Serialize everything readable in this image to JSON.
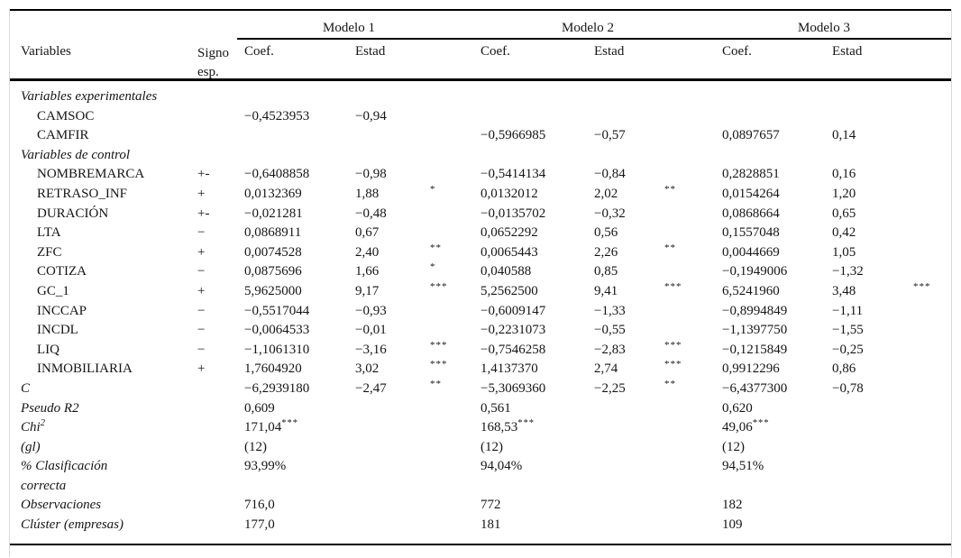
{
  "table": {
    "header": {
      "variables": "Variables",
      "signo_line1": "Signo",
      "signo_line2": "esp.",
      "models": [
        "Modelo 1",
        "Modelo 2",
        "Modelo 3"
      ],
      "coef": "Coef.",
      "estad": "Estad"
    },
    "rows": [
      {
        "type": "section",
        "label": "Variables experimentales"
      },
      {
        "type": "var",
        "label": "CAMSOC",
        "signo": "",
        "m": [
          [
            "−0,4523953",
            "−0,94",
            ""
          ],
          [
            "",
            "",
            ""
          ],
          [
            "",
            "",
            ""
          ]
        ]
      },
      {
        "type": "var",
        "label": "CAMFIR",
        "signo": "",
        "m": [
          [
            "",
            "",
            ""
          ],
          [
            "−0,5966985",
            "−0,57",
            ""
          ],
          [
            "0,0897657",
            "0,14",
            ""
          ]
        ]
      },
      {
        "type": "section",
        "label": "Variables de control"
      },
      {
        "type": "var",
        "label": "NOMBREMARCA",
        "signo": "+-",
        "m": [
          [
            "−0,6408858",
            "−0,98",
            ""
          ],
          [
            "−0,5414134",
            "−0,84",
            ""
          ],
          [
            "0,2828851",
            "0,16",
            ""
          ]
        ]
      },
      {
        "type": "var",
        "label": "RETRASO_INF",
        "signo": "+",
        "m": [
          [
            "0,0132369",
            "1,88",
            "*"
          ],
          [
            "0,0132012",
            "2,02",
            "**"
          ],
          [
            "0,0154264",
            "1,20",
            ""
          ]
        ]
      },
      {
        "type": "var",
        "label": "DURACIÓN",
        "signo": "+-",
        "m": [
          [
            "−0,021281",
            "−0,48",
            ""
          ],
          [
            "−0,0135702",
            "−0,32",
            ""
          ],
          [
            "0,0868664",
            "0,65",
            ""
          ]
        ]
      },
      {
        "type": "var",
        "label": "LTA",
        "signo": "−",
        "m": [
          [
            "0,0868911",
            "0,67",
            ""
          ],
          [
            "0,0652292",
            "0,56",
            ""
          ],
          [
            "0,1557048",
            "0,42",
            ""
          ]
        ]
      },
      {
        "type": "var",
        "label": "ZFC",
        "signo": "+",
        "m": [
          [
            "0,0074528",
            "2,40",
            "**"
          ],
          [
            "0,0065443",
            "2,26",
            "**"
          ],
          [
            "0,0044669",
            "1,05",
            ""
          ]
        ]
      },
      {
        "type": "var",
        "label": "COTIZA",
        "signo": "−",
        "m": [
          [
            "0,0875696",
            "1,66",
            "*"
          ],
          [
            "0,040588",
            "0,85",
            ""
          ],
          [
            "−0,1949006",
            "−1,32",
            ""
          ]
        ]
      },
      {
        "type": "var",
        "label": "GC_1",
        "signo": "+",
        "m": [
          [
            "5,9625000",
            "9,17",
            "***"
          ],
          [
            "5,2562500",
            "9,41",
            "***"
          ],
          [
            "6,5241960",
            "3,48",
            "***"
          ]
        ]
      },
      {
        "type": "var",
        "label": "INCCAP",
        "signo": "−",
        "m": [
          [
            "−0,5517044",
            "−0,93",
            ""
          ],
          [
            "−0,6009147",
            "−1,33",
            ""
          ],
          [
            "−0,8994849",
            "−1,11",
            ""
          ]
        ]
      },
      {
        "type": "var",
        "label": "INCDL",
        "signo": "−",
        "m": [
          [
            "−0,0064533",
            "−0,01",
            ""
          ],
          [
            "−0,2231073",
            "−0,55",
            ""
          ],
          [
            "−1,1397750",
            "−1,55",
            ""
          ]
        ]
      },
      {
        "type": "var",
        "label": "LIQ",
        "signo": "−",
        "m": [
          [
            "−1,1061310",
            "−3,16",
            "***"
          ],
          [
            "−0,7546258",
            "−2,83",
            "***"
          ],
          [
            "−0,1215849",
            "−0,25",
            ""
          ]
        ]
      },
      {
        "type": "var",
        "label": "INMOBILIARIA",
        "signo": "+",
        "m": [
          [
            "1,7604920",
            "3,02",
            "***"
          ],
          [
            "1,4137370",
            "2,74",
            "***"
          ],
          [
            "0,9912296",
            "0,86",
            ""
          ]
        ]
      },
      {
        "type": "stat",
        "label": "C",
        "signo": "",
        "m": [
          [
            "−6,2939180",
            "−2,47",
            "**"
          ],
          [
            "−5,3069360",
            "−2,25",
            "**"
          ],
          [
            "−6,4377300",
            "−0,78",
            ""
          ]
        ]
      },
      {
        "type": "stat",
        "label": "Pseudo R2",
        "signo": "",
        "m": [
          [
            "0,609",
            "",
            ""
          ],
          [
            "0,561",
            "",
            ""
          ],
          [
            "0,620",
            "",
            ""
          ]
        ]
      },
      {
        "type": "stat",
        "label": "Chi",
        "label_sup": "2",
        "signo": "",
        "m": [
          [
            "171,04",
            "",
            "",
            "***"
          ],
          [
            "168,53",
            "",
            "",
            "***"
          ],
          [
            "49,06",
            "",
            "",
            "***"
          ]
        ]
      },
      {
        "type": "stat",
        "label": "(gl)",
        "signo": "",
        "m": [
          [
            "(12)",
            "",
            ""
          ],
          [
            "(12)",
            "",
            ""
          ],
          [
            "(12)",
            "",
            ""
          ]
        ]
      },
      {
        "type": "stat2",
        "label": "% Clasificación",
        "label2": "correcta",
        "signo": "",
        "m": [
          [
            "93,99%",
            "",
            ""
          ],
          [
            "94,04%",
            "",
            ""
          ],
          [
            "94,51%",
            "",
            ""
          ]
        ]
      },
      {
        "type": "stat",
        "label": "Observaciones",
        "signo": "",
        "m": [
          [
            "716,0",
            "",
            ""
          ],
          [
            "772",
            "",
            ""
          ],
          [
            "182",
            "",
            ""
          ]
        ]
      },
      {
        "type": "stat",
        "label": "Clúster (empresas)",
        "signo": "",
        "m": [
          [
            "177,0",
            "",
            ""
          ],
          [
            "181",
            "",
            ""
          ],
          [
            "109",
            "",
            ""
          ]
        ]
      }
    ],
    "significance_levels": [
      "*",
      "**",
      "***"
    ]
  }
}
